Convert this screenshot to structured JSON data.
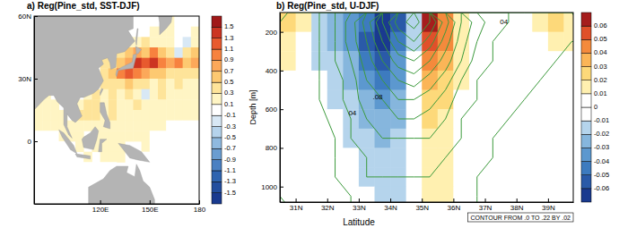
{
  "chart_data": [
    {
      "type": "map",
      "title": "a) Reg(Pine_std, SST-DJF)",
      "x": [
        82.5,
        87.5,
        92.5,
        97.5,
        102.5,
        107.5,
        112.5,
        117.5,
        122.5,
        127.5,
        132.5,
        137.5,
        142.5,
        147.5,
        152.5,
        157.5,
        162.5,
        167.5,
        172.5,
        177.5
      ],
      "y": [
        57.5,
        52.5,
        47.5,
        42.5,
        37.5,
        32.5,
        27.5,
        22.5,
        17.5,
        12.5,
        7.5,
        2.5,
        -2.5,
        -7.5,
        -12.5,
        -17.5,
        -22.5,
        -27.5
      ],
      "z": [
        [
          null,
          null,
          null,
          null,
          null,
          null,
          null,
          null,
          null,
          null,
          null,
          null,
          0.05,
          0.05,
          0.05,
          null,
          0.1,
          0.05,
          0.05,
          0.05
        ],
        [
          null,
          null,
          null,
          null,
          null,
          null,
          null,
          null,
          null,
          null,
          null,
          null,
          0.05,
          0.05,
          0.1,
          0.2,
          0.1,
          0.05,
          0.05,
          0.1
        ],
        [
          null,
          null,
          null,
          null,
          null,
          null,
          null,
          null,
          null,
          null,
          null,
          0.1,
          0.2,
          0.3,
          0.2,
          0.1,
          0.1,
          0.05,
          -0.2,
          0.1
        ],
        [
          null,
          null,
          null,
          null,
          null,
          null,
          null,
          null,
          null,
          null,
          0.3,
          0.5,
          0.7,
          0.6,
          0.9,
          0.5,
          0.3,
          -0.3,
          0.4,
          0.5
        ],
        [
          null,
          null,
          null,
          null,
          null,
          null,
          null,
          null,
          0.3,
          0.3,
          0.5,
          0.7,
          1.3,
          1.1,
          1.3,
          0.9,
          0.7,
          0.9,
          0.6,
          0.7
        ],
        [
          null,
          null,
          null,
          null,
          null,
          null,
          null,
          null,
          0.4,
          0.6,
          0.9,
          1.1,
          0.9,
          0.7,
          0.5,
          0.5,
          0.3,
          0.4,
          0.3,
          0.3
        ],
        [
          null,
          null,
          null,
          null,
          null,
          null,
          null,
          null,
          0.3,
          0.4,
          0.3,
          0.5,
          0.3,
          0.3,
          0.2,
          0.3,
          0.2,
          0.3,
          0.2,
          0.2
        ],
        [
          null,
          0.1,
          null,
          null,
          null,
          null,
          0.2,
          0.3,
          0.2,
          0.3,
          0.2,
          0.3,
          0.2,
          -0.2,
          0.2,
          0.3,
          0.2,
          0.2,
          0.1,
          0.2
        ],
        [
          0.1,
          0.1,
          0.1,
          null,
          null,
          0.2,
          0.3,
          0.3,
          0.2,
          0.3,
          0.2,
          0.2,
          0.3,
          0.1,
          0.2,
          0.2,
          0.2,
          0.1,
          0.2,
          0.1
        ],
        [
          0.1,
          0.1,
          0.1,
          0.1,
          null,
          0.3,
          0.3,
          0.3,
          0.2,
          0.3,
          0.2,
          0.2,
          0.2,
          0.2,
          0.2,
          0.1,
          0.2,
          0.1,
          0.1,
          0.1
        ],
        [
          0.1,
          0.1,
          0.1,
          0.1,
          0.2,
          0.2,
          0.2,
          0.2,
          0.2,
          0.2,
          0.2,
          0.1,
          0.1,
          0.1,
          0.1,
          0.1,
          0.05,
          0.05,
          0.05,
          0.05
        ],
        [
          0.05,
          0.05,
          0.05,
          0.1,
          0.1,
          0.1,
          null,
          0.1,
          0.1,
          0.1,
          0.1,
          0.1,
          0.1,
          0.1,
          0.05,
          0.05,
          0.05,
          0.05,
          0.05,
          0.05
        ],
        [
          0.05,
          0.05,
          0.05,
          0.05,
          null,
          0.1,
          null,
          0.1,
          0.1,
          0.1,
          0.1,
          null,
          null,
          0.1,
          0.05,
          0.05,
          0.05,
          0.05,
          0.05,
          0.05
        ],
        [
          0.05,
          0.05,
          0.05,
          0.05,
          0.05,
          null,
          0.1,
          null,
          0.1,
          0.1,
          0.1,
          null,
          null,
          0.05,
          0.05,
          0.05,
          0.05,
          0.05,
          0.05,
          0.05
        ],
        [
          0.05,
          0.05,
          0.05,
          0.05,
          0.05,
          0.05,
          0.05,
          0.05,
          0.05,
          0.05,
          null,
          null,
          null,
          0.05,
          0.05,
          0.05,
          0.05,
          0.05,
          0.05,
          0.05
        ],
        [
          0.05,
          0.05,
          0.05,
          0.05,
          0.05,
          0.05,
          0.05,
          0.05,
          null,
          null,
          null,
          null,
          null,
          0.05,
          0.05,
          0.05,
          0.05,
          0.05,
          0.05,
          0.05
        ],
        [
          0.05,
          0.05,
          0.05,
          0.05,
          0.05,
          0.05,
          0.05,
          null,
          null,
          null,
          null,
          null,
          null,
          null,
          0.05,
          0.05,
          0.05,
          0.05,
          0.05,
          0.05
        ],
        [
          0.05,
          0.05,
          0.05,
          0.05,
          0.05,
          0.05,
          0.05,
          null,
          null,
          null,
          null,
          null,
          null,
          null,
          0.05,
          0.05,
          0.05,
          0.05,
          0.05,
          0.05
        ]
      ],
      "xlim": [
        80,
        180
      ],
      "ylim": [
        -30,
        60
      ],
      "xticks": [
        {
          "value": 120,
          "label": "120E"
        },
        {
          "value": 150,
          "label": "150E"
        },
        180
      ],
      "yticks": [
        0,
        {
          "value": 30,
          "label": "30N"
        },
        {
          "value": 60,
          "label": "60N"
        }
      ],
      "colorbar": {
        "levels": [
          -1.5,
          -1.3,
          -1.1,
          -0.9,
          -0.7,
          -0.5,
          -0.3,
          -0.1,
          0.1,
          0.3,
          0.5,
          0.7,
          0.9,
          1.1,
          1.3,
          1.5
        ],
        "colors": [
          "#1a3a8f",
          "#234e9e",
          "#2f64b0",
          "#4a80c2",
          "#6a9dd1",
          "#8fb9df",
          "#b5d3ec",
          "#d8e8f5",
          "#ffffff",
          "#fff5c4",
          "#fee49a",
          "#fdc971",
          "#fca85a",
          "#f7823f",
          "#e85a2e",
          "#cc3522",
          "#a01818"
        ]
      }
    },
    {
      "type": "contour",
      "title": "b) Reg(Pine_std, U-DJF)",
      "x_label": "Latitude",
      "y_label": "Depth [m]",
      "x": [
        30.75,
        31.25,
        31.75,
        32.25,
        32.75,
        33.25,
        33.75,
        34.25,
        34.75,
        35.25,
        35.75,
        36.25,
        36.75,
        37.25,
        37.75,
        38.25,
        38.75,
        39.25,
        39.75
      ],
      "y": [
        150,
        250,
        350,
        450,
        550,
        650,
        750,
        850,
        950,
        1050
      ],
      "z": [
        [
          0.02,
          0.01,
          -0.015,
          -0.025,
          -0.035,
          -0.045,
          -0.065,
          -0.055,
          -0.015,
          0.06,
          0.04,
          0.01,
          0,
          0,
          0,
          0,
          0.01,
          0.02,
          0.01
        ],
        [
          0.01,
          0,
          -0.015,
          -0.025,
          -0.035,
          -0.055,
          -0.065,
          -0.045,
          -0.015,
          0.05,
          0.04,
          0.01,
          0,
          0,
          0,
          0,
          0,
          0.01,
          0.01
        ],
        [
          0.01,
          0,
          -0.015,
          -0.015,
          -0.025,
          -0.045,
          -0.055,
          -0.035,
          0,
          0.04,
          0.03,
          0.01,
          0,
          0,
          0,
          0,
          0,
          0,
          0
        ],
        [
          0,
          0,
          0,
          -0.015,
          -0.025,
          -0.035,
          -0.045,
          -0.035,
          0,
          0.03,
          0.02,
          0.01,
          0,
          0,
          0,
          0,
          0,
          0,
          0
        ],
        [
          0,
          0,
          0,
          -0.015,
          -0.015,
          -0.025,
          -0.035,
          -0.025,
          0,
          0.02,
          0.02,
          0,
          0,
          0,
          0,
          0,
          0,
          0,
          0
        ],
        [
          0,
          0,
          0,
          0,
          -0.015,
          -0.025,
          -0.025,
          -0.025,
          0,
          0.02,
          0.01,
          0,
          0,
          0,
          0,
          0,
          0,
          0,
          0
        ],
        [
          0,
          0,
          0,
          0,
          -0.015,
          -0.015,
          -0.025,
          -0.015,
          0,
          0.01,
          0.01,
          0,
          0,
          0,
          0,
          0,
          0,
          0,
          0
        ],
        [
          0,
          0,
          0,
          0,
          0,
          -0.015,
          -0.015,
          -0.015,
          0,
          0.01,
          0.01,
          0,
          0,
          0,
          0,
          0,
          0,
          0,
          0
        ],
        [
          0,
          0,
          0,
          0,
          0,
          -0.015,
          -0.015,
          -0.015,
          0,
          0.01,
          0.01,
          0,
          0,
          0,
          0,
          0,
          0,
          0,
          0
        ],
        [
          0,
          0,
          0,
          0,
          0,
          0,
          -0.015,
          -0.015,
          0,
          0.01,
          0.01,
          0,
          0,
          0,
          0,
          0,
          0,
          0,
          0
        ]
      ],
      "contour_values": [
        [
          0,
          0.01,
          0.02,
          0.04,
          0.07,
          0.11,
          0.16,
          0.21,
          0.23,
          0.2,
          0.15,
          0.1,
          0.07,
          0.05,
          0.04,
          0.03,
          0.03,
          0.02,
          0.02
        ],
        [
          0,
          0.01,
          0.02,
          0.04,
          0.07,
          0.1,
          0.14,
          0.18,
          0.2,
          0.17,
          0.13,
          0.09,
          0.06,
          0.04,
          0.03,
          0.03,
          0.02,
          0.02,
          0.02
        ],
        [
          0,
          0.01,
          0.02,
          0.04,
          0.06,
          0.09,
          0.12,
          0.15,
          0.16,
          0.14,
          0.11,
          0.08,
          0.05,
          0.04,
          0.03,
          0.02,
          0.02,
          0.02,
          0.01
        ],
        [
          0,
          0.01,
          0.02,
          0.03,
          0.05,
          0.08,
          0.1,
          0.12,
          0.13,
          0.11,
          0.09,
          0.06,
          0.04,
          0.03,
          0.02,
          0.02,
          0.02,
          0.01,
          0.01
        ],
        [
          0,
          0.01,
          0.02,
          0.03,
          0.05,
          0.07,
          0.08,
          0.1,
          0.1,
          0.09,
          0.07,
          0.05,
          0.04,
          0.03,
          0.02,
          0.02,
          0.01,
          0.01,
          0.01
        ],
        [
          0,
          0.01,
          0.01,
          0.03,
          0.04,
          0.06,
          0.07,
          0.08,
          0.08,
          0.07,
          0.06,
          0.04,
          0.03,
          0.02,
          0.02,
          0.01,
          0.01,
          0.01,
          0.01
        ],
        [
          0,
          0,
          0.01,
          0.02,
          0.04,
          0.05,
          0.06,
          0.06,
          0.06,
          0.06,
          0.05,
          0.04,
          0.03,
          0.02,
          0.01,
          0.01,
          0.01,
          0.01,
          0
        ],
        [
          0,
          0,
          0.01,
          0.02,
          0.03,
          0.04,
          0.05,
          0.05,
          0.05,
          0.05,
          0.04,
          0.03,
          0.02,
          0.02,
          0.01,
          0.01,
          0.01,
          0,
          0
        ],
        [
          0,
          0,
          0.01,
          0.02,
          0.03,
          0.04,
          0.04,
          0.04,
          0.04,
          0.04,
          0.03,
          0.03,
          0.02,
          0.01,
          0.01,
          0.01,
          0,
          0,
          0
        ],
        [
          0,
          0,
          0.01,
          0.01,
          0.02,
          0.03,
          0.03,
          0.03,
          0.03,
          0.03,
          0.03,
          0.02,
          0.02,
          0.01,
          0.01,
          0,
          0,
          0,
          0
        ]
      ],
      "contour_levels": [
        0,
        0.02,
        0.04,
        0.06,
        0.08,
        0.1,
        0.12,
        0.14,
        0.16,
        0.18,
        0.2,
        0.22
      ],
      "color": "#3c9a3c",
      "contour_labels": [
        {
          "text": "04",
          "lat": 37.6,
          "depth": 150
        },
        {
          "text": "04",
          "lat": 32.8,
          "depth": 620
        },
        {
          "text": ".08",
          "lat": 33.6,
          "depth": 540
        }
      ],
      "annotation": "CONTOUR FROM .0 TO .22 BY .02",
      "xlim": [
        30.5,
        39.8
      ],
      "ylim": [
        100,
        1080
      ],
      "xticks": [
        {
          "value": 31,
          "label": "31N"
        },
        {
          "value": 32,
          "label": "32N"
        },
        {
          "value": 33,
          "label": "33N"
        },
        {
          "value": 34,
          "label": "34N"
        },
        {
          "value": 35,
          "label": "35N"
        },
        {
          "value": 36,
          "label": "36N"
        },
        {
          "value": 37,
          "label": "37N"
        },
        {
          "value": 38,
          "label": "38N"
        },
        {
          "value": 39,
          "label": "39N"
        }
      ],
      "yticks": [
        200,
        400,
        600,
        800,
        1000
      ],
      "colorbar": {
        "levels": [
          -0.06,
          -0.05,
          -0.04,
          -0.03,
          -0.02,
          -0.01,
          0,
          0.01,
          0.02,
          0.03,
          0.04,
          0.05,
          0.06
        ],
        "colors": [
          "#1a3a8f",
          "#2a5aa8",
          "#3d7bbf",
          "#5c98cf",
          "#86b6dd",
          "#b5d4ec",
          "#ffffff",
          "#ffffff",
          "#fff0b0",
          "#fdd97a",
          "#fbb557",
          "#f48a3c",
          "#e0502a",
          "#a51d1d"
        ]
      }
    }
  ]
}
